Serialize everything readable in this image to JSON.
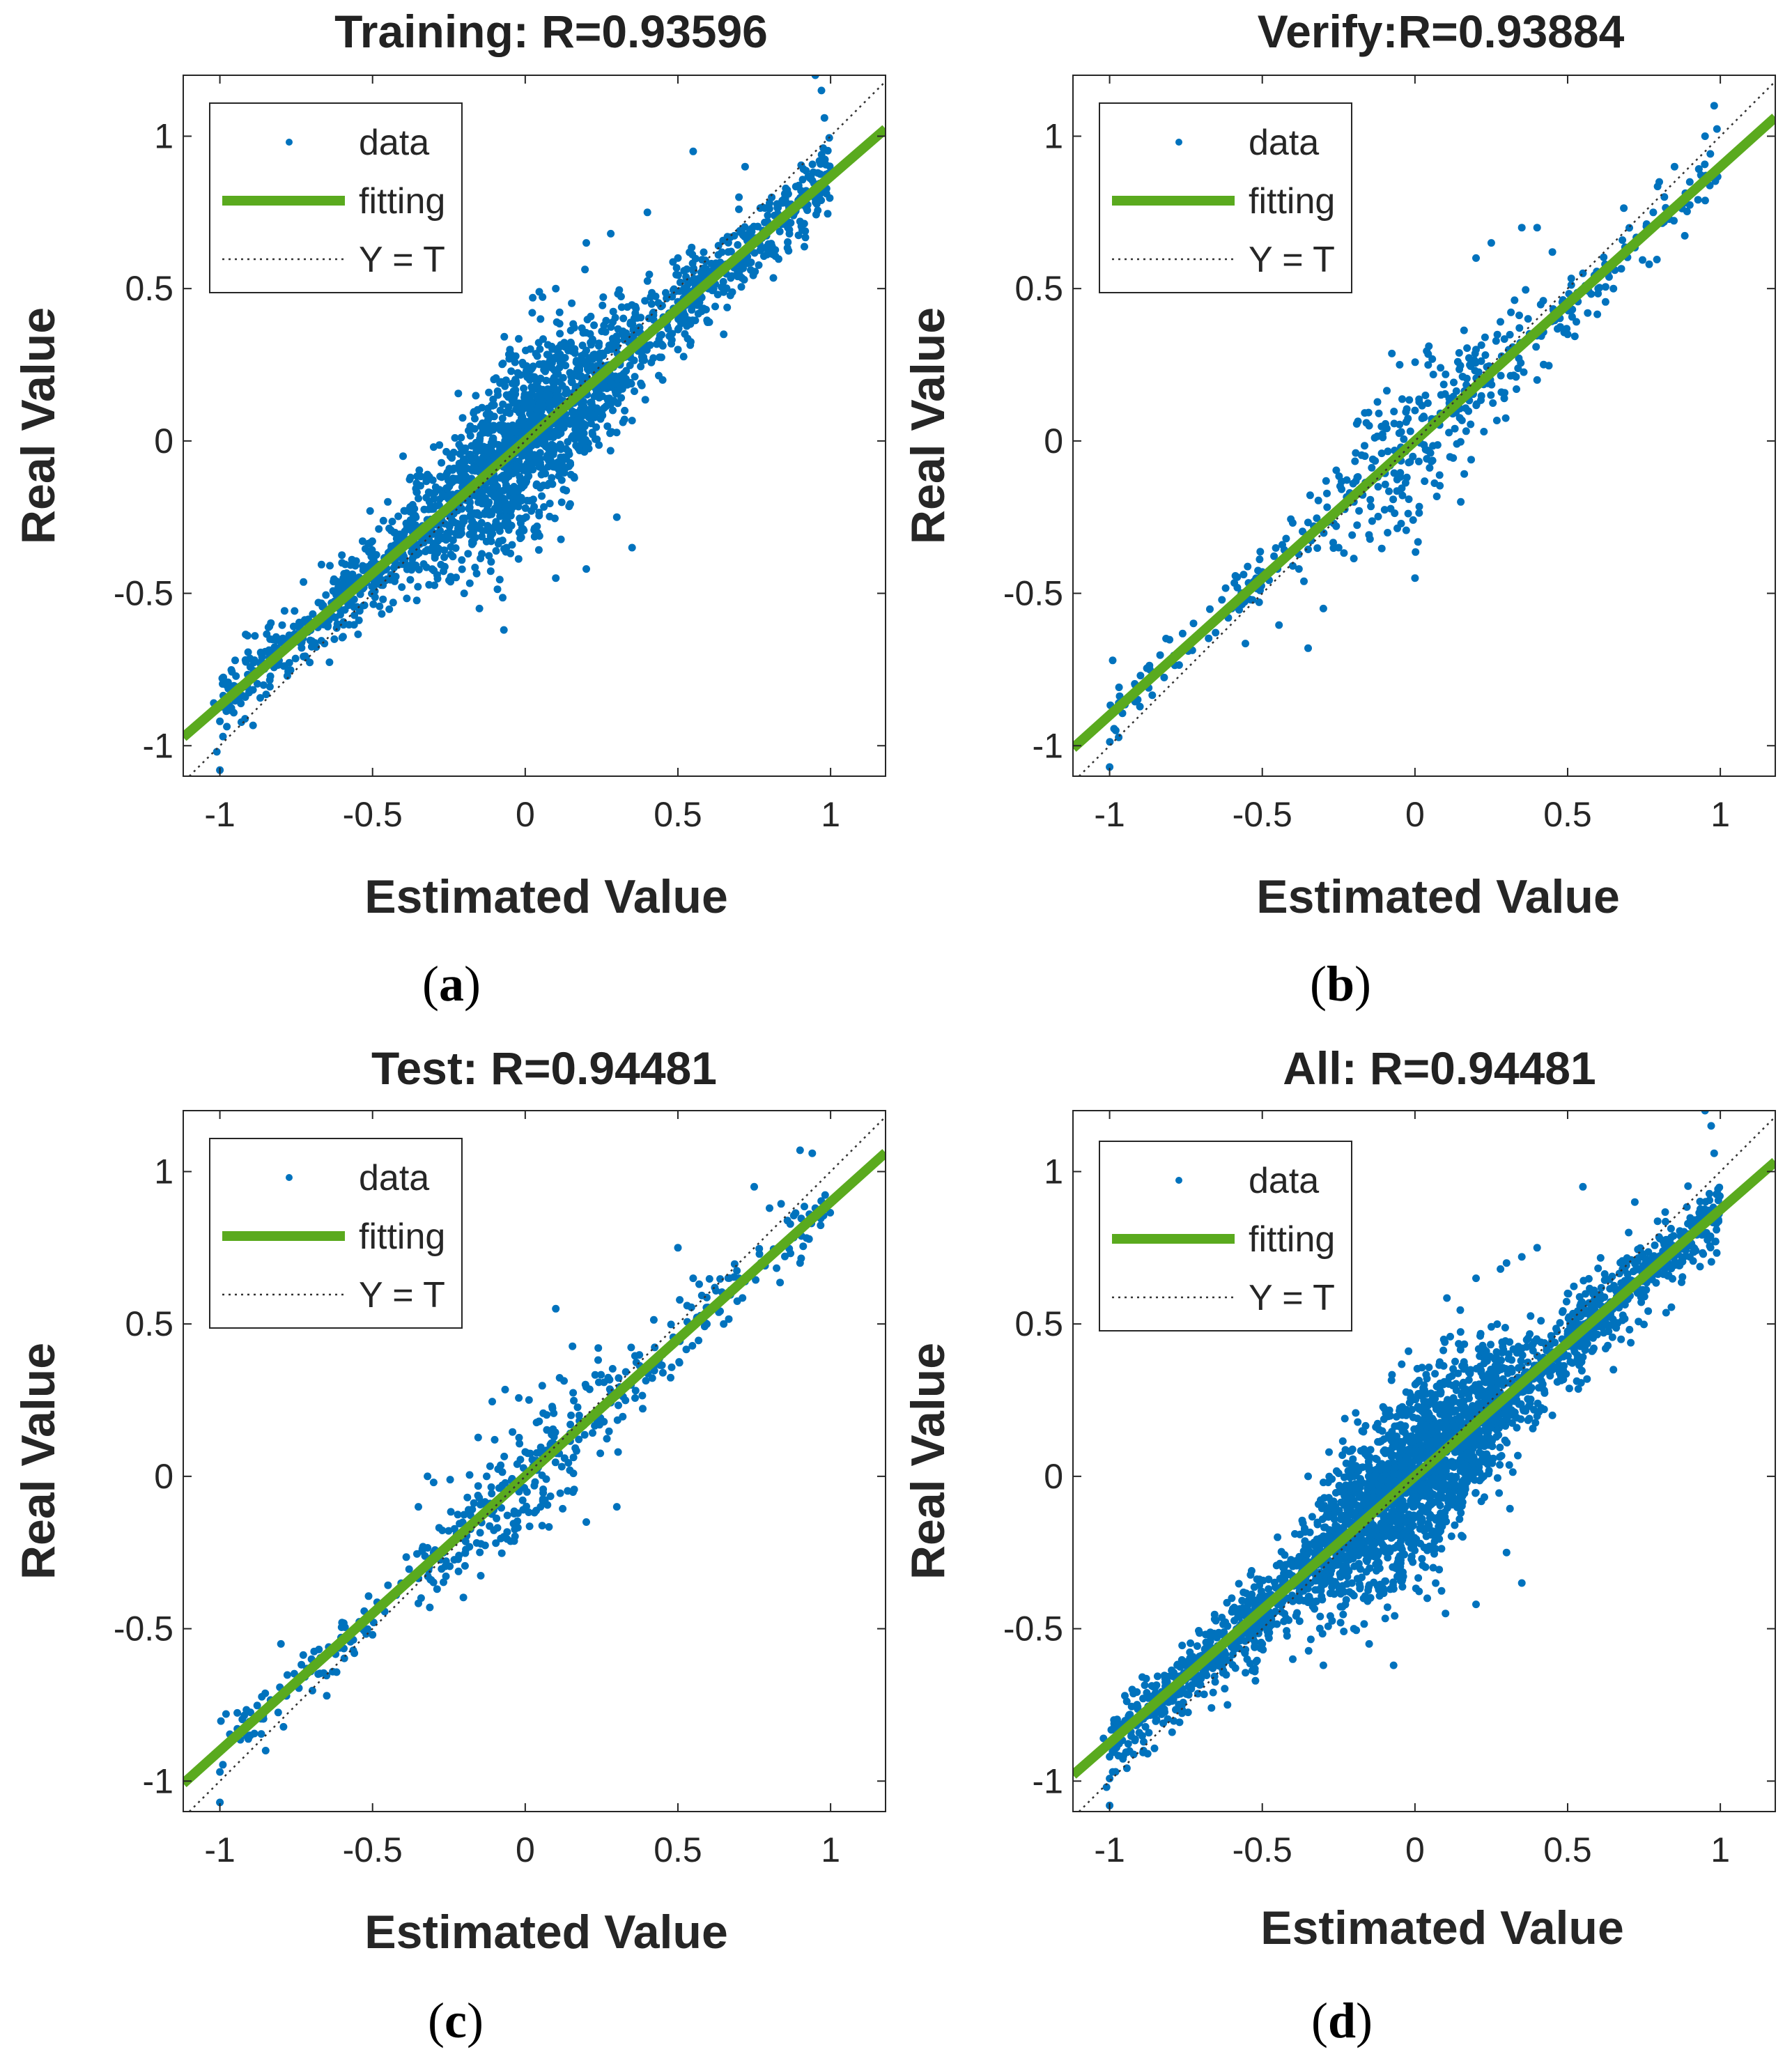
{
  "colors": {
    "data": "#0072BD",
    "fitting": "#5AAA1E",
    "identity": "#333333",
    "axes": "#262626",
    "text": "#262626"
  },
  "chart_data": [
    {
      "type": "scatter",
      "id": "a",
      "panel_label": "(a)",
      "title": "Training: R=0.93596",
      "xlabel": "Estimated Value",
      "ylabel": "Real Value",
      "xlim": [
        -1.12,
        1.18
      ],
      "ylim": [
        -1.1,
        1.2
      ],
      "xticks": [
        -1,
        -0.5,
        0,
        0.5,
        1
      ],
      "xtick_labels": [
        "-1",
        "-0.5",
        "0",
        "0.5",
        "1"
      ],
      "yticks": [
        -1,
        -0.5,
        0,
        0.5,
        1
      ],
      "ytick_labels": [
        "-1",
        "-0.5",
        "0",
        "0.5",
        "1"
      ],
      "legend": {
        "position": "top-left",
        "entries": [
          "data",
          "fitting",
          "Y = T"
        ]
      },
      "fit": {
        "slope": 0.868,
        "intercept": 0.0
      },
      "point_count": 2200,
      "seed": 11,
      "spread": 0.085,
      "points": [
        [
          -1.0,
          -1.08
        ],
        [
          -1.01,
          -1.02
        ],
        [
          -0.99,
          -0.97
        ],
        [
          -1.0,
          -0.92
        ],
        [
          -1.02,
          -0.86
        ],
        [
          -0.98,
          -0.8
        ],
        [
          -0.95,
          -0.72
        ],
        [
          0.0,
          0.0
        ],
        [
          -0.1,
          -0.05
        ],
        [
          0.1,
          0.12
        ],
        [
          0.2,
          0.25
        ],
        [
          -0.3,
          -0.02
        ],
        [
          -0.25,
          -0.15
        ],
        [
          0.28,
          0.68
        ],
        [
          0.2,
          0.65
        ],
        [
          0.55,
          0.95
        ],
        [
          0.95,
          1.2
        ],
        [
          0.97,
          1.15
        ],
        [
          0.98,
          1.06
        ],
        [
          0.9,
          0.72
        ],
        [
          0.86,
          0.7
        ],
        [
          0.8,
          0.78
        ],
        [
          0.6,
          0.5
        ],
        [
          0.65,
          0.35
        ],
        [
          0.5,
          0.3
        ],
        [
          0.45,
          0.2
        ],
        [
          0.3,
          -0.25
        ],
        [
          0.35,
          -0.35
        ],
        [
          0.1,
          -0.45
        ],
        [
          0.2,
          -0.42
        ],
        [
          -0.15,
          -0.55
        ],
        [
          -0.07,
          -0.62
        ],
        [
          -0.2,
          -0.5
        ],
        [
          0.1,
          0.5
        ],
        [
          -0.45,
          -0.2
        ],
        [
          -0.6,
          -0.4
        ],
        [
          -0.4,
          -0.05
        ],
        [
          -0.5,
          -0.45
        ],
        [
          0.4,
          0.75
        ],
        [
          0.5,
          0.6
        ],
        [
          0.7,
          0.8
        ],
        [
          0.72,
          0.9
        ],
        [
          0.15,
          0.32
        ],
        [
          0.05,
          0.4
        ],
        [
          -0.05,
          0.3
        ]
      ]
    },
    {
      "type": "scatter",
      "id": "b",
      "panel_label": "(b)",
      "title": "Verify:R=0.93884",
      "xlabel": "Estimated Value",
      "ylabel": "Real Value",
      "xlim": [
        -1.12,
        1.18
      ],
      "ylim": [
        -1.1,
        1.2
      ],
      "xticks": [
        -1,
        -0.5,
        0,
        0.5,
        1
      ],
      "xtick_labels": [
        "-1",
        "-0.5",
        "0",
        "0.5",
        "1"
      ],
      "yticks": [
        -1,
        -0.5,
        0,
        0.5,
        1
      ],
      "ytick_labels": [
        "-1",
        "-0.5",
        "0",
        "0.5",
        "1"
      ],
      "legend": {
        "position": "top-left",
        "entries": [
          "data",
          "fitting",
          "Y = T"
        ]
      },
      "fit": {
        "slope": 0.9,
        "intercept": 0.0
      },
      "point_count": 450,
      "seed": 23,
      "spread": 0.07,
      "points": [
        [
          -1.0,
          -1.07
        ],
        [
          -0.98,
          -0.95
        ],
        [
          -0.99,
          -0.72
        ],
        [
          -0.5,
          -0.43
        ],
        [
          -0.45,
          -0.42
        ],
        [
          -0.4,
          -0.41
        ],
        [
          -0.38,
          -0.42
        ],
        [
          -0.35,
          -0.68
        ],
        [
          -0.3,
          -0.55
        ],
        [
          0.35,
          0.7
        ],
        [
          0.4,
          0.7
        ],
        [
          0.45,
          0.62
        ],
        [
          0.2,
          0.6
        ],
        [
          0.25,
          0.65
        ],
        [
          0.55,
          0.55
        ],
        [
          0.6,
          0.5
        ],
        [
          0.65,
          0.5
        ],
        [
          0.95,
          1.0
        ],
        [
          0.98,
          1.1
        ],
        [
          0.9,
          0.85
        ],
        [
          0.8,
          0.85
        ],
        [
          0.85,
          0.9
        ],
        [
          0.0,
          -0.45
        ],
        [
          0.15,
          -0.2
        ],
        [
          0.2,
          0.3
        ],
        [
          0.4,
          0.2
        ],
        [
          0.5,
          0.35
        ],
        [
          -0.15,
          0.05
        ],
        [
          -0.05,
          0.25
        ],
        [
          0.0,
          0.1
        ],
        [
          -0.2,
          -0.2
        ],
        [
          -0.6,
          -0.55
        ],
        [
          -0.25,
          -0.35
        ]
      ]
    },
    {
      "type": "scatter",
      "id": "c",
      "panel_label": "(c)",
      "title": "Test: R=0.94481",
      "xlabel": "Estimated Value",
      "ylabel": "Real Value",
      "xlim": [
        -1.12,
        1.18
      ],
      "ylim": [
        -1.1,
        1.2
      ],
      "xticks": [
        -1,
        -0.5,
        0,
        0.5,
        1
      ],
      "xtick_labels": [
        "-1",
        "-0.5",
        "0",
        "0.5",
        "1"
      ],
      "yticks": [
        -1,
        -0.5,
        0,
        0.5,
        1
      ],
      "ytick_labels": [
        "-1",
        "-0.5",
        "0",
        "0.5",
        "1"
      ],
      "legend": {
        "position": "top-left",
        "entries": [
          "data",
          "fitting",
          "Y = T"
        ]
      },
      "fit": {
        "slope": 0.9,
        "intercept": 0.0
      },
      "point_count": 450,
      "seed": 37,
      "spread": 0.065,
      "points": [
        [
          -1.0,
          -1.07
        ],
        [
          -1.0,
          -0.97
        ],
        [
          -0.98,
          -0.78
        ],
        [
          -0.9,
          -0.85
        ],
        [
          -0.85,
          -0.9
        ],
        [
          -0.8,
          -0.55
        ],
        [
          -0.7,
          -0.6
        ],
        [
          -0.6,
          -0.48
        ],
        [
          -0.65,
          -0.72
        ],
        [
          -0.5,
          -0.52
        ],
        [
          -0.35,
          -0.1
        ],
        [
          -0.3,
          -0.02
        ],
        [
          -0.32,
          0.0
        ],
        [
          -0.3,
          -0.25
        ],
        [
          0.1,
          0.55
        ],
        [
          0.15,
          0.2
        ],
        [
          0.3,
          -0.1
        ],
        [
          0.2,
          -0.15
        ],
        [
          0.45,
          0.4
        ],
        [
          0.5,
          0.75
        ],
        [
          0.55,
          0.65
        ],
        [
          0.65,
          0.5
        ],
        [
          0.7,
          0.65
        ],
        [
          0.8,
          0.88
        ],
        [
          0.9,
          1.07
        ],
        [
          0.94,
          1.06
        ],
        [
          0.95,
          0.88
        ],
        [
          0.9,
          0.7
        ],
        [
          0.75,
          0.95
        ],
        [
          -0.1,
          0.12
        ],
        [
          0.05,
          -0.1
        ],
        [
          0.0,
          0.08
        ]
      ]
    },
    {
      "type": "scatter",
      "id": "d",
      "panel_label": "(d)",
      "title": "All: R=0.94481",
      "xlabel": "Estimated Value",
      "ylabel": "Real Value",
      "xlim": [
        -1.12,
        1.18
      ],
      "ylim": [
        -1.1,
        1.2
      ],
      "xticks": [
        -1,
        -0.5,
        0,
        0.5,
        1
      ],
      "xtick_labels": [
        "-1",
        "-0.5",
        "0",
        "0.5",
        "1"
      ],
      "yticks": [
        -1,
        -0.5,
        0,
        0.5,
        1
      ],
      "ytick_labels": [
        "-1",
        "-0.5",
        "0",
        "0.5",
        "1"
      ],
      "legend": {
        "position": "top-left",
        "entries": [
          "data",
          "fitting",
          "Y = T"
        ]
      },
      "fit": {
        "slope": 0.875,
        "intercept": 0.0
      },
      "point_count": 3000,
      "seed": 53,
      "spread": 0.085,
      "points": [
        [
          -1.0,
          -1.08
        ],
        [
          -1.01,
          -1.02
        ],
        [
          -0.99,
          -0.97
        ],
        [
          -1.0,
          -0.92
        ],
        [
          -1.02,
          -0.86
        ],
        [
          -0.98,
          -0.8
        ],
        [
          -0.95,
          -0.72
        ],
        [
          -0.35,
          0.0
        ],
        [
          -0.3,
          -0.02
        ],
        [
          -0.25,
          0.01
        ],
        [
          -0.2,
          0.0
        ],
        [
          -0.15,
          0.02
        ],
        [
          0.2,
          0.65
        ],
        [
          0.28,
          0.68
        ],
        [
          0.3,
          0.7
        ],
        [
          0.35,
          0.72
        ],
        [
          0.55,
          0.95
        ],
        [
          0.95,
          1.2
        ],
        [
          0.97,
          1.15
        ],
        [
          0.98,
          1.06
        ],
        [
          0.9,
          0.72
        ],
        [
          0.86,
          0.7
        ],
        [
          0.82,
          0.75
        ],
        [
          0.6,
          0.5
        ],
        [
          0.65,
          0.35
        ],
        [
          0.45,
          0.2
        ],
        [
          0.3,
          -0.25
        ],
        [
          0.35,
          -0.35
        ],
        [
          0.1,
          -0.45
        ],
        [
          0.2,
          -0.42
        ],
        [
          -0.15,
          -0.55
        ],
        [
          -0.07,
          -0.62
        ],
        [
          -0.2,
          -0.5
        ],
        [
          -0.45,
          -0.2
        ],
        [
          -0.6,
          -0.4
        ],
        [
          -0.55,
          -0.45
        ],
        [
          -0.5,
          -0.55
        ],
        [
          -0.4,
          -0.6
        ],
        [
          -0.3,
          -0.62
        ],
        [
          -0.5,
          -0.43
        ],
        [
          -0.45,
          -0.42
        ],
        [
          -0.4,
          -0.41
        ],
        [
          0.0,
          0.0
        ],
        [
          0.1,
          0.12
        ],
        [
          0.4,
          0.75
        ],
        [
          0.5,
          0.6
        ],
        [
          0.7,
          0.8
        ],
        [
          0.72,
          0.9
        ]
      ]
    }
  ]
}
